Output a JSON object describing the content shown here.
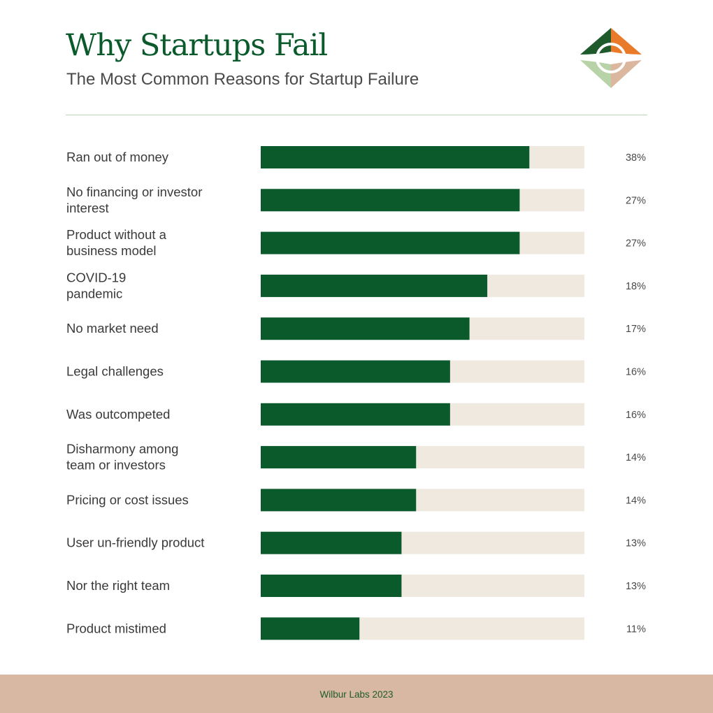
{
  "header": {
    "title": "Why Startups Fail",
    "subtitle": "The Most Common Reasons for Startup Failure"
  },
  "footer": {
    "credit": "Wilbur Labs 2023"
  },
  "colors": {
    "bar": "#0b5a2c",
    "track": "#efe9e0",
    "title": "#0b5a2c",
    "logo_dark_green": "#1f5a2d",
    "logo_orange": "#e87a2a",
    "logo_light_green": "#b9d3a8",
    "logo_tan": "#dbb79f",
    "footer": "#d8b8a2"
  },
  "chart_data": {
    "type": "bar",
    "orientation": "horizontal",
    "title": "Why Startups Fail",
    "subtitle": "The Most Common Reasons for Startup Failure",
    "categories": [
      [
        "Ran out of money"
      ],
      [
        "No financing or investor",
        "interest"
      ],
      [
        "Product without a",
        "business model"
      ],
      [
        "COVID-19",
        "pandemic"
      ],
      [
        "No market need"
      ],
      [
        "Legal challenges"
      ],
      [
        "Was outcompeted"
      ],
      [
        "Disharmony among",
        "team or investors"
      ],
      [
        "Pricing or cost issues"
      ],
      [
        "User un-friendly product"
      ],
      [
        "Nor the right team"
      ],
      [
        "Product mistimed"
      ]
    ],
    "values": [
      38,
      27,
      27,
      18,
      17,
      16,
      16,
      14,
      14,
      13,
      13,
      11
    ],
    "value_labels": [
      "38%",
      "27%",
      "27%",
      "18%",
      "17%",
      "16%",
      "16%",
      "14%",
      "14%",
      "13%",
      "13%",
      "11%"
    ],
    "bar_fill_fractions": [
      0.83,
      0.8,
      0.8,
      0.7,
      0.645,
      0.585,
      0.585,
      0.48,
      0.48,
      0.435,
      0.435,
      0.305
    ],
    "grid": false,
    "legend": "none"
  }
}
